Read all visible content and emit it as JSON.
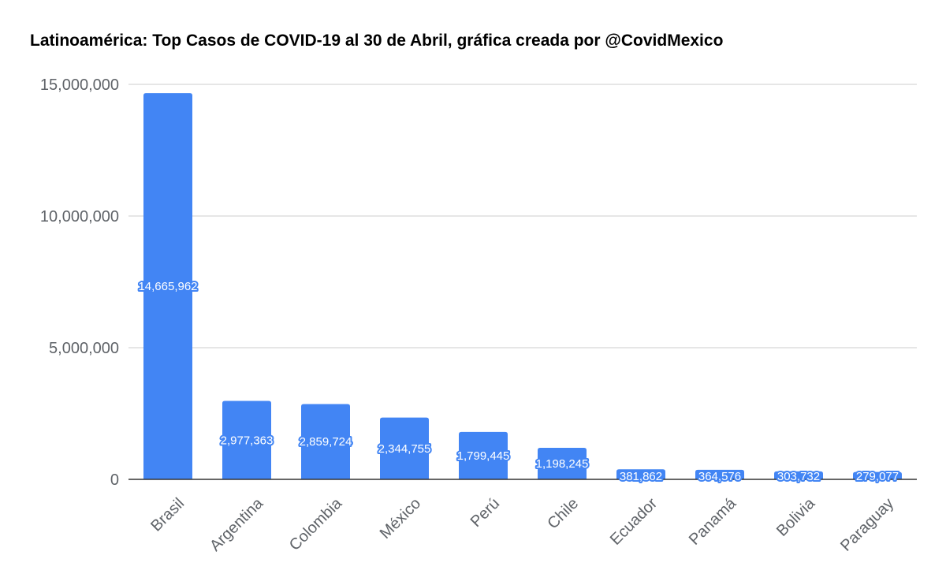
{
  "chart_data": {
    "type": "bar",
    "title": "Latinoamérica: Top Casos de COVID-19 al 30 de Abril, gráfica creada por @CovidMexico",
    "categories": [
      "Brasil",
      "Argentina",
      "Colombia",
      "México",
      "Perú",
      "Chile",
      "Ecuador",
      "Panamá",
      "Bolivia",
      "Paraguay"
    ],
    "values": [
      14665962,
      2977363,
      2859724,
      2344755,
      1799445,
      1198245,
      381862,
      364576,
      303732,
      279077
    ],
    "data_labels": [
      "14,665,962",
      "2,977,363",
      "2,859,724",
      "2,344,755",
      "1,799,445",
      "1,198,245",
      "381,862",
      "364,576",
      "303,732",
      "279,077"
    ],
    "yticks": [
      0,
      5000000,
      10000000,
      15000000
    ],
    "ytick_labels": [
      "0",
      "5,000,000",
      "10,000,000",
      "15,000,000"
    ],
    "ylim": [
      0,
      15000000
    ],
    "xlabel": "",
    "ylabel": "",
    "grid": true,
    "legend": "none",
    "bar_color": "#4285f4",
    "grid_color": "#cccccc",
    "axis_color": "#333333",
    "label_color": "#ffffff"
  }
}
